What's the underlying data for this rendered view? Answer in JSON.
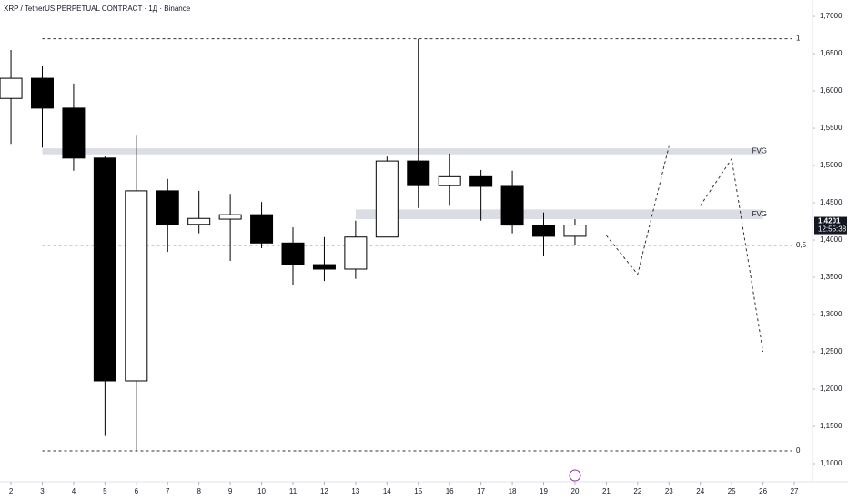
{
  "chart_data": {
    "type": "candlestick",
    "title": "XRP / TetherUS PERPETUAL CONTRACT · 1Д · Binance",
    "x": [
      2,
      3,
      4,
      5,
      6,
      7,
      8,
      9,
      10,
      11,
      12,
      13,
      14,
      15,
      16,
      17,
      18,
      19,
      20
    ],
    "open": [
      1.59,
      1.617,
      1.577,
      1.51,
      1.211,
      1.466,
      1.421,
      1.428,
      1.434,
      1.396,
      1.367,
      1.361,
      1.404,
      1.506,
      1.473,
      1.485,
      1.472,
      1.42,
      1.405
    ],
    "high": [
      1.655,
      1.633,
      1.61,
      1.512,
      1.54,
      1.482,
      1.466,
      1.462,
      1.451,
      1.417,
      1.404,
      1.426,
      1.512,
      1.67,
      1.516,
      1.494,
      1.493,
      1.437,
      1.428
    ],
    "low": [
      1.529,
      1.524,
      1.493,
      1.137,
      1.117,
      1.384,
      1.409,
      1.372,
      1.389,
      1.34,
      1.345,
      1.348,
      1.404,
      1.443,
      1.446,
      1.426,
      1.409,
      1.378,
      1.393
    ],
    "close": [
      1.617,
      1.577,
      1.51,
      1.211,
      1.466,
      1.421,
      1.429,
      1.434,
      1.396,
      1.367,
      1.361,
      1.404,
      1.506,
      1.473,
      1.485,
      1.472,
      1.42,
      1.405,
      1.4201
    ],
    "up_color": "#ffffff",
    "down_color": "#000000",
    "xlim": [
      1.65,
      27.58
    ],
    "xticks": [
      2,
      3,
      4,
      5,
      6,
      7,
      8,
      9,
      10,
      11,
      12,
      13,
      14,
      15,
      16,
      17,
      18,
      19,
      20,
      21,
      22,
      23,
      24,
      25,
      26,
      27
    ],
    "ylim": [
      1.0756,
      1.722
    ],
    "yticks": [
      {
        "value": 1.7,
        "label": "1,7000"
      },
      {
        "value": 1.65,
        "label": "1,6500"
      },
      {
        "value": 1.6,
        "label": "1,6000"
      },
      {
        "value": 1.55,
        "label": "1,5500"
      },
      {
        "value": 1.5,
        "label": "1,5000"
      },
      {
        "value": 1.45,
        "label": "1,4500"
      },
      {
        "value": 1.4,
        "label": "1,4000"
      },
      {
        "value": 1.35,
        "label": "1,3500"
      },
      {
        "value": 1.3,
        "label": "1,3000"
      },
      {
        "value": 1.25,
        "label": "1,2500"
      },
      {
        "value": 1.2,
        "label": "1,2000"
      },
      {
        "value": 1.15,
        "label": "1,1500"
      },
      {
        "value": 1.1,
        "label": "1,1000"
      }
    ],
    "last_price": {
      "value": 1.4201,
      "label": "1,4201"
    },
    "countdown": "12:55:38",
    "fib_levels": [
      {
        "label": "1",
        "price": 1.67,
        "start": 3
      },
      {
        "label": "0,5",
        "price": 1.393,
        "start": 3
      },
      {
        "label": "0",
        "price": 1.117,
        "start": 3
      }
    ],
    "zones": [
      {
        "label": "FVG",
        "top": 1.523,
        "bottom": 1.515,
        "start": 3,
        "end": 26
      },
      {
        "label": "FVG",
        "top": 1.441,
        "bottom": 1.428,
        "start": 13,
        "end": 26
      }
    ],
    "projection": [
      {
        "x": [
          21,
          22,
          23
        ],
        "values": [
          1.406,
          1.354,
          1.526
        ]
      },
      {
        "x": [
          24,
          25,
          26
        ],
        "values": [
          1.446,
          1.509,
          1.25
        ]
      }
    ]
  }
}
